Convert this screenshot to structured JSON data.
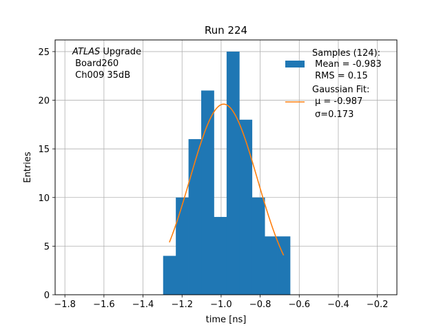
{
  "chart_data": {
    "type": "bar",
    "title": "Run 224",
    "xlabel": "time [ns]",
    "ylabel": "Entries",
    "xlim": [
      -1.85,
      -0.1
    ],
    "ylim": [
      0,
      26.2
    ],
    "grid": true,
    "x_ticks": [
      -1.8,
      -1.6,
      -1.4,
      -1.2,
      -1.0,
      -0.8,
      -0.6,
      -0.4,
      -0.2
    ],
    "x_tick_labels": [
      "−1.8",
      "−1.6",
      "−1.4",
      "−1.2",
      "−1.0",
      "−0.8",
      "−0.6",
      "−0.4",
      "−0.2"
    ],
    "y_ticks": [
      0,
      5,
      10,
      15,
      20,
      25
    ],
    "y_tick_labels": [
      "0",
      "5",
      "10",
      "15",
      "20",
      "25"
    ],
    "histogram": {
      "name": "Samples (124):",
      "color": "#1f77b4",
      "bins": [
        {
          "x0": -1.297,
          "x1": -1.232,
          "count": 4
        },
        {
          "x0": -1.232,
          "x1": -1.167,
          "count": 10
        },
        {
          "x0": -1.167,
          "x1": -1.102,
          "count": 16
        },
        {
          "x0": -1.102,
          "x1": -1.037,
          "count": 21
        },
        {
          "x0": -1.037,
          "x1": -0.972,
          "count": 8
        },
        {
          "x0": -0.972,
          "x1": -0.907,
          "count": 25
        },
        {
          "x0": -0.907,
          "x1": -0.842,
          "count": 18
        },
        {
          "x0": -0.842,
          "x1": -0.777,
          "count": 10
        },
        {
          "x0": -0.777,
          "x1": -0.712,
          "count": 6
        },
        {
          "x0": -0.712,
          "x1": -0.647,
          "count": 6
        }
      ]
    },
    "fit": {
      "name": "Gaussian Fit:",
      "color": "#ff7f0e",
      "mu": -0.987,
      "sigma": 0.173,
      "amplitude": 19.6,
      "x_range": [
        -1.265,
        -0.68
      ]
    },
    "legend": {
      "placement": "top-right",
      "hist_lines": [
        "Samples (124):",
        " Mean = -0.983",
        " RMS = 0.15"
      ],
      "fit_lines": [
        "Gaussian Fit:",
        "μ = -0.987",
        "σ=0.173"
      ]
    },
    "annotation": {
      "italic": "ATLAS",
      "rest": " Upgrade",
      "line2": " Board260",
      "line3": " Ch009 35dB"
    }
  },
  "colors": {
    "bar": "#1f77b4",
    "fit": "#ff7f0e",
    "grid": "#b0b0b0"
  }
}
